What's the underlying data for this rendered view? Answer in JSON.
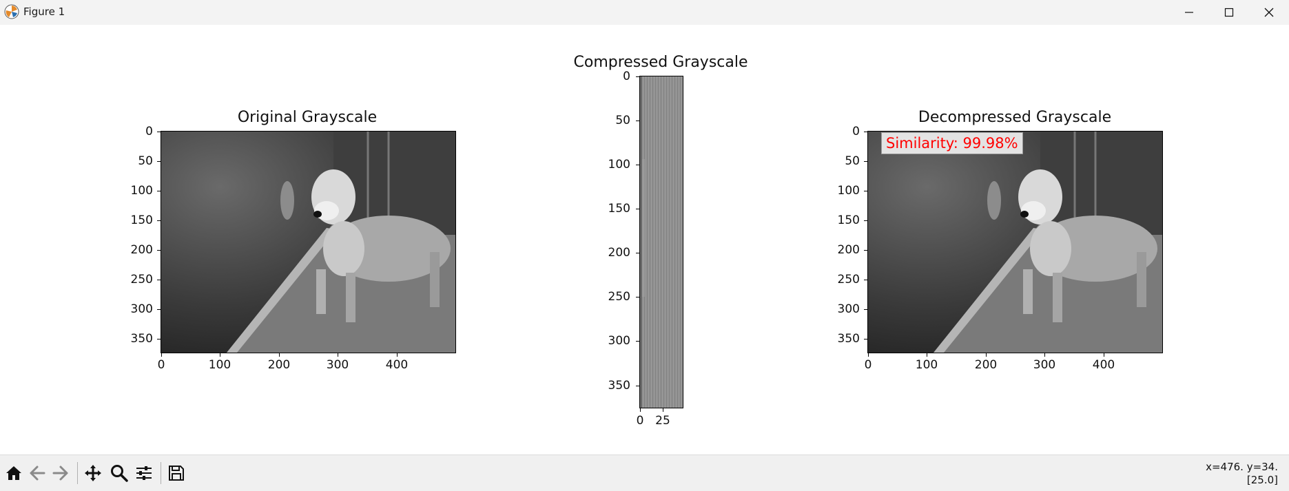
{
  "window": {
    "title": "Figure 1",
    "app_icon": "matplotlib-icon",
    "controls": [
      "minimize-icon",
      "maximize-icon",
      "close-icon"
    ]
  },
  "plots": [
    {
      "title": "Original Grayscale",
      "x_ticks": [
        "0",
        "100",
        "200",
        "300",
        "400"
      ],
      "y_ticks": [
        "0",
        "50",
        "100",
        "150",
        "200",
        "250",
        "300",
        "350"
      ]
    },
    {
      "title": "Compressed Grayscale",
      "x_ticks": [
        "0",
        "25"
      ],
      "y_ticks": [
        "0",
        "50",
        "100",
        "150",
        "200",
        "250",
        "300",
        "350"
      ]
    },
    {
      "title": "Decompressed Grayscale",
      "x_ticks": [
        "0",
        "100",
        "200",
        "300",
        "400"
      ],
      "y_ticks": [
        "0",
        "50",
        "100",
        "150",
        "200",
        "250",
        "300",
        "350"
      ]
    }
  ],
  "annotation": {
    "text": "Similarity: 99.98%",
    "color": "#ff0000"
  },
  "toolbar": {
    "buttons": [
      "home-icon",
      "back-icon",
      "forward-icon",
      "pan-icon",
      "zoom-icon",
      "configure-subplots-icon",
      "save-icon"
    ],
    "coords_line1": "x=476. y=34.",
    "coords_line2": "[25.0]"
  }
}
